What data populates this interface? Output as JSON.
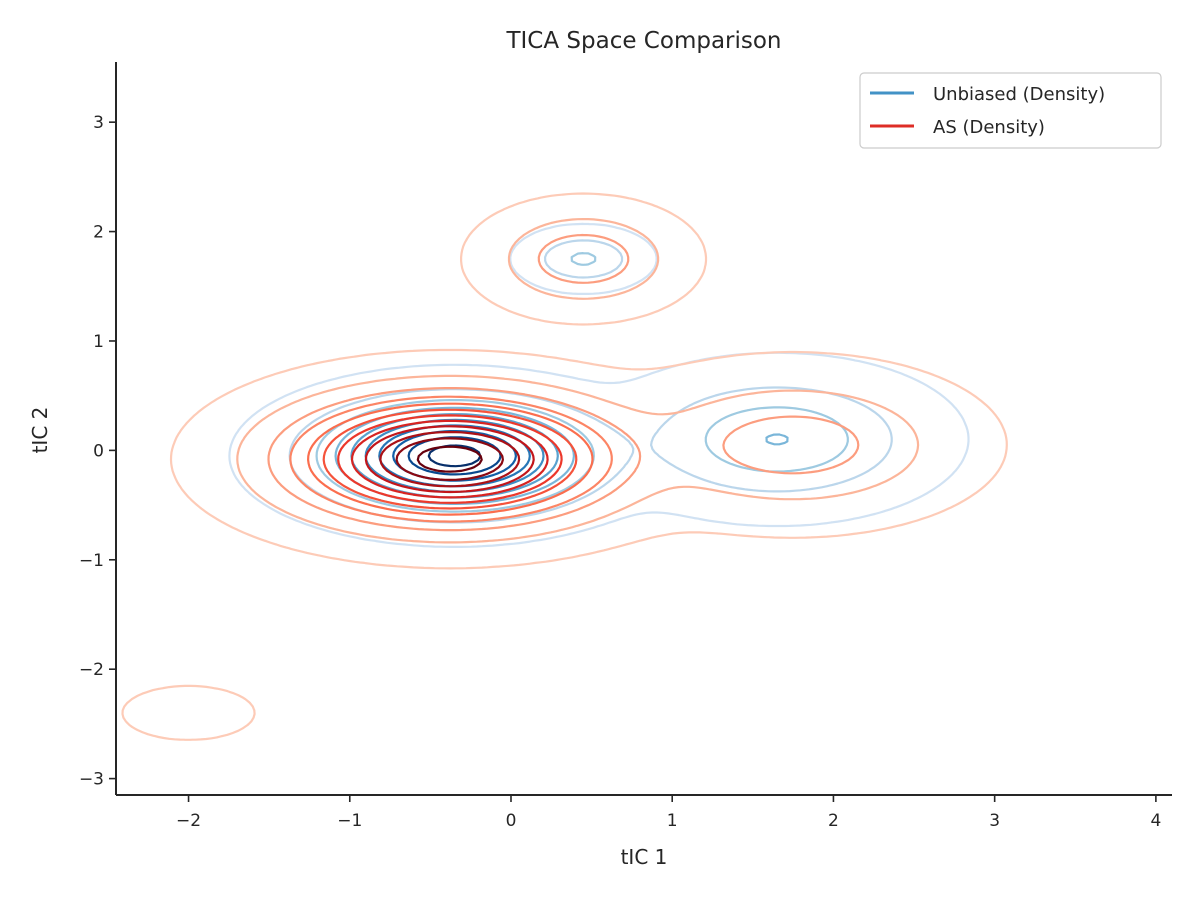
{
  "chart_data": {
    "type": "contour",
    "title": "TICA Space Comparison",
    "xlabel": "tIC 1",
    "ylabel": "tIC 2",
    "xlim": [
      -2.45,
      4.1
    ],
    "ylim": [
      -3.15,
      3.55
    ],
    "xticks": [
      -2,
      -1,
      0,
      1,
      2,
      3,
      4
    ],
    "yticks": [
      -3,
      -2,
      -1,
      0,
      1,
      2,
      3
    ],
    "xtick_labels": [
      "−2",
      "−1",
      "0",
      "1",
      "2",
      "3",
      "4"
    ],
    "ytick_labels": [
      "−3",
      "−2",
      "−1",
      "0",
      "1",
      "2",
      "3"
    ],
    "grid": false,
    "legend": {
      "placement": "top-right"
    },
    "series": [
      {
        "name": "Unbiased (Density)",
        "colormap": "Blues",
        "legend_color": "#4292c6",
        "levels": 10,
        "modes": [
          {
            "center": [
              -0.35,
              -0.05
            ],
            "sx": 0.42,
            "sy": 0.25,
            "weight": 0.74
          },
          {
            "center": [
              1.65,
              0.1
            ],
            "sx": 0.42,
            "sy": 0.28,
            "weight": 0.18
          },
          {
            "center": [
              0.45,
              1.75
            ],
            "sx": 0.17,
            "sy": 0.12,
            "weight": 0.02
          }
        ]
      },
      {
        "name": "AS (Density)",
        "colormap": "Reds",
        "legend_color": "#de2d26",
        "levels": 12,
        "modes": [
          {
            "center": [
              -0.38,
              -0.08
            ],
            "sx": 0.52,
            "sy": 0.3,
            "weight": 0.8
          },
          {
            "center": [
              1.75,
              0.05
            ],
            "sx": 0.5,
            "sy": 0.32,
            "weight": 0.11
          },
          {
            "center": [
              0.45,
              1.75
            ],
            "sx": 0.28,
            "sy": 0.22,
            "weight": 0.05
          },
          {
            "center": [
              -2.0,
              -2.4
            ],
            "sx": 0.2,
            "sy": 0.12,
            "weight": 0.004
          }
        ]
      }
    ]
  }
}
